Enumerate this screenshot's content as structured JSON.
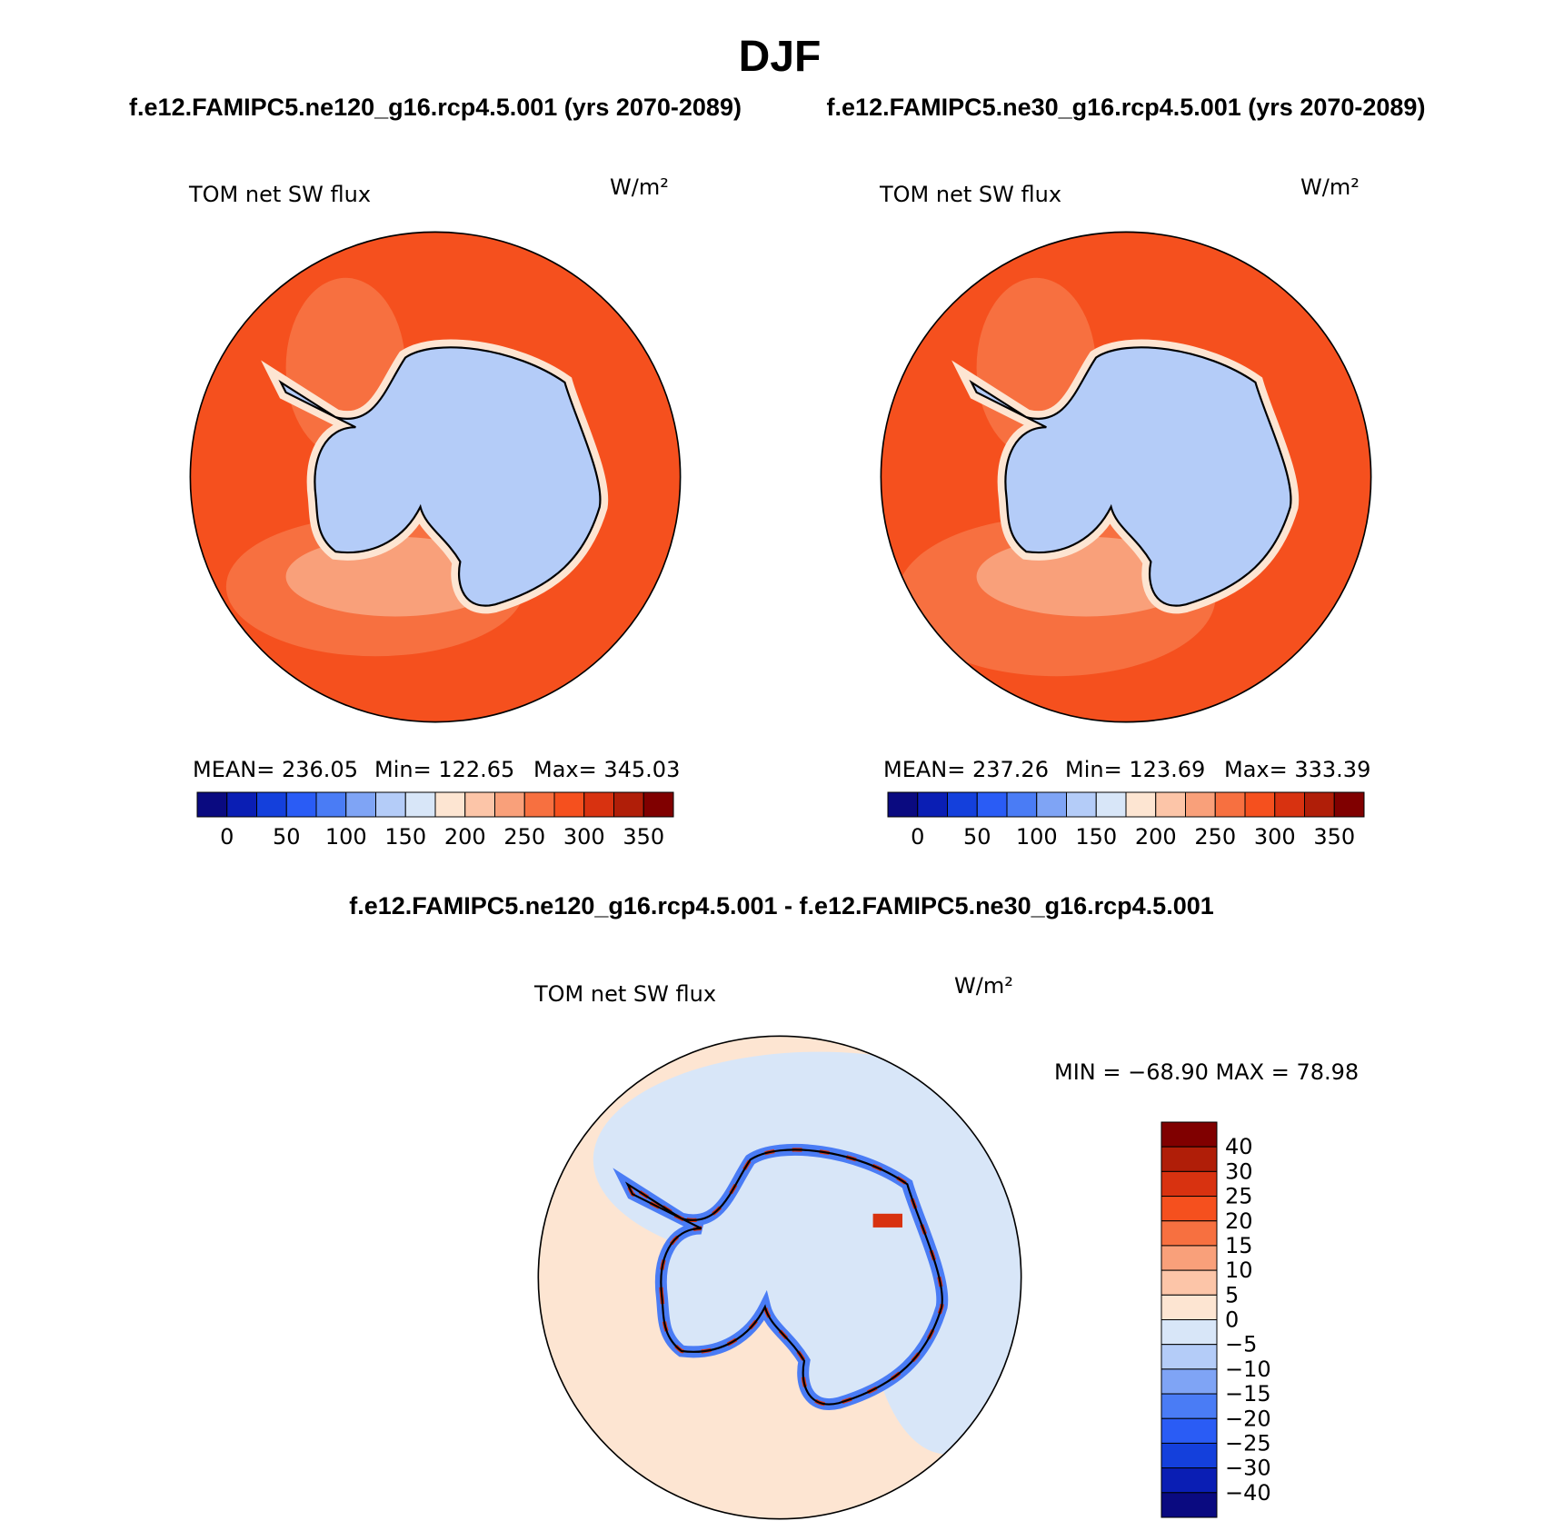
{
  "title": "DJF",
  "panels": [
    {
      "subtitle": "f.e12.FAMIPC5.ne120_g16.rcp4.5.001 (yrs 2070-2089)",
      "field": "TOM net SW flux",
      "units": "W/m²",
      "stats": [
        "MEAN= 236.05",
        "Min= 122.65",
        "Max= 345.03"
      ],
      "colorbar": {
        "colors": [
          "#0a0a80",
          "#0a1eb4",
          "#1440dc",
          "#2a5cf5",
          "#4a7cf5",
          "#7fa4f5",
          "#b4ccf8",
          "#d8e6f8",
          "#fde5d2",
          "#fcc5a8",
          "#f9a07a",
          "#f77040",
          "#f5501e",
          "#d83210",
          "#b01e08",
          "#800000"
        ],
        "labels": [
          0,
          50,
          100,
          150,
          200,
          250,
          300,
          350
        ]
      }
    },
    {
      "subtitle": "f.e12.FAMIPC5.ne30_g16.rcp4.5.001 (yrs 2070-2089)",
      "field": "TOM net SW flux",
      "units": "W/m²",
      "stats": [
        "MEAN= 237.26",
        "Min= 123.69",
        "Max= 333.39"
      ],
      "colorbar": {
        "colors": [
          "#0a0a80",
          "#0a1eb4",
          "#1440dc",
          "#2a5cf5",
          "#4a7cf5",
          "#7fa4f5",
          "#b4ccf8",
          "#d8e6f8",
          "#fde5d2",
          "#fcc5a8",
          "#f9a07a",
          "#f77040",
          "#f5501e",
          "#d83210",
          "#b01e08",
          "#800000"
        ],
        "labels": [
          0,
          50,
          100,
          150,
          200,
          250,
          300,
          350
        ]
      }
    }
  ],
  "difference": {
    "subtitle": "f.e12.FAMIPC5.ne120_g16.rcp4.5.001 - f.e12.FAMIPC5.ne30_g16.rcp4.5.001",
    "field": "TOM net SW flux",
    "units": "W/m²",
    "stats": "MIN = −68.90 MAX =  78.98",
    "colorbar": {
      "colors": [
        "#800000",
        "#b01e08",
        "#d83210",
        "#f5501e",
        "#f77040",
        "#f9a07a",
        "#fcc5a8",
        "#fde5d2",
        "#d8e6f8",
        "#b4ccf8",
        "#7fa4f5",
        "#4a7cf5",
        "#2a5cf5",
        "#1440dc",
        "#0a1eb4",
        "#0a0a80"
      ],
      "labels": [
        "40",
        "30",
        "25",
        "20",
        "15",
        "10",
        "5",
        "0",
        "−5",
        "−10",
        "−15",
        "−20",
        "−25",
        "−30",
        "−40"
      ]
    }
  }
}
